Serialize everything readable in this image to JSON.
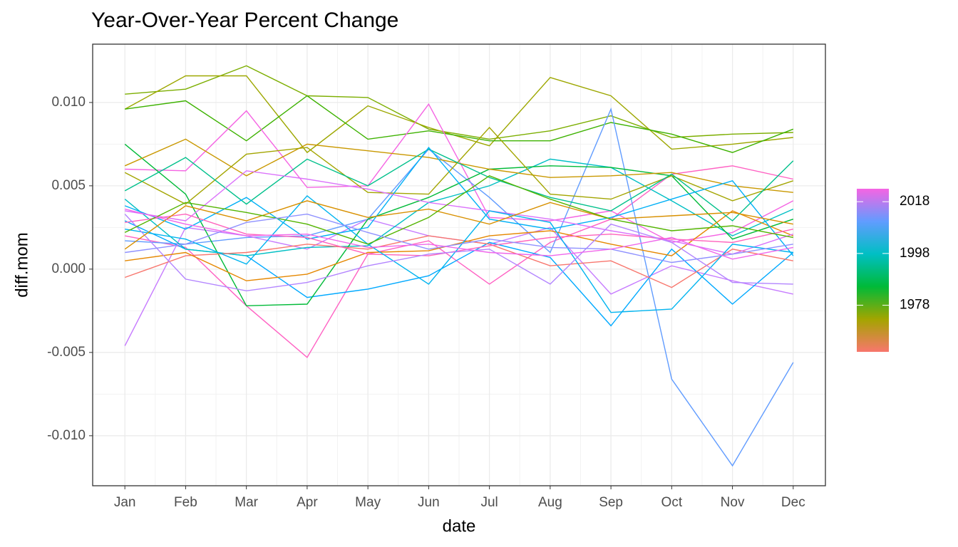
{
  "chart_data": {
    "type": "line",
    "title": "Year-Over-Year Percent Change",
    "x_label": "date",
    "y_label": "diff.mom",
    "categories": [
      "Jan",
      "Feb",
      "Mar",
      "Apr",
      "May",
      "Jun",
      "Jul",
      "Aug",
      "Sep",
      "Oct",
      "Nov",
      "Dec"
    ],
    "ylim": [
      -0.013,
      0.0135
    ],
    "yticks": [
      {
        "value": -0.01,
        "label": "-0.010"
      },
      -0.005,
      {
        "value": 0,
        "label": "0.000"
      },
      0.005,
      {
        "value": 0.01,
        "label": "0.010"
      }
    ],
    "grid": true,
    "colorbar": {
      "lim": [
        1960,
        2023
      ],
      "ticks": [
        1978,
        1998,
        2018
      ],
      "colors": [
        "#F8766D",
        "#A3A500",
        "#00BA38",
        "#00BFC4",
        "#619CFF",
        "#F564E3"
      ]
    },
    "series": [
      {
        "color": "#7CAE00",
        "values": [
          0.0105,
          0.0108,
          0.0122,
          0.0104,
          0.0103,
          0.0084,
          0.0078,
          0.0083,
          0.0092,
          0.0079,
          0.0081,
          0.0082
        ]
      },
      {
        "color": "#9DA700",
        "values": [
          0.0096,
          0.0116,
          0.0116,
          0.007,
          0.0098,
          0.0085,
          0.0074,
          0.0115,
          0.0104,
          0.0072,
          0.0075,
          0.0079
        ]
      },
      {
        "color": "#3DB200",
        "values": [
          0.0096,
          0.0101,
          0.0077,
          0.0104,
          0.0078,
          0.0083,
          0.0077,
          0.0077,
          0.0088,
          0.0081,
          0.007,
          0.0084
        ]
      },
      {
        "color": "#F564E3",
        "values": [
          0.006,
          0.0059,
          0.0095,
          0.0049,
          0.005,
          0.0099,
          0.0031,
          0.0029,
          0.0035,
          0.0016,
          0.0022,
          0.0041
        ]
      },
      {
        "color": "#FF61C3",
        "values": [
          0.002,
          0.0013,
          -0.0022,
          -0.0053,
          0.0009,
          0.0017,
          -0.0009,
          0.0016,
          0.003,
          0.0057,
          0.0062,
          0.0054
        ]
      },
      {
        "color": "#619CFF",
        "values": [
          0.0017,
          0.0015,
          0.0019,
          0.002,
          0.003,
          0.0072,
          0.0043,
          0.001,
          0.0096,
          -0.0066,
          -0.0118,
          -0.0056
        ]
      },
      {
        "color": "#C77CFF",
        "values": [
          -0.0046,
          0.0025,
          0.002,
          0.0012,
          0.003,
          0.002,
          0.0015,
          0.0025,
          -0.0015,
          0.0002,
          -0.0007,
          -0.0015
        ]
      },
      {
        "color": "#00A9FF",
        "values": [
          0.0029,
          0.0012,
          0.0008,
          -0.0017,
          -0.0012,
          -0.0004,
          0.0016,
          0.0007,
          -0.0034,
          0.0012,
          -0.0021,
          0.001
        ]
      },
      {
        "color": "#00BFC4",
        "values": [
          0.0042,
          0.0012,
          0.0008,
          0.0013,
          0.0014,
          0.004,
          0.005,
          0.0066,
          0.0061,
          0.0041,
          0.002,
          0.0036
        ]
      },
      {
        "color": "#00BA38",
        "values": [
          0.0075,
          0.0045,
          -0.0022,
          -0.0021,
          0.003,
          0.0043,
          0.006,
          0.0062,
          0.0061,
          0.0056,
          0.0018,
          0.003
        ]
      },
      {
        "color": "#F8766D",
        "values": [
          -0.0005,
          0.0008,
          0.001,
          0.0015,
          0.0012,
          0.002,
          0.0015,
          0.0002,
          0.0005,
          -0.0011,
          0.0012,
          0.0005
        ]
      },
      {
        "color": "#E58700",
        "values": [
          0.0005,
          0.001,
          -0.0007,
          -0.0003,
          0.001,
          0.0011,
          0.002,
          0.0023,
          0.0015,
          0.0008,
          0.0035,
          0.002
        ]
      },
      {
        "color": "#C99800",
        "values": [
          0.0062,
          0.0078,
          0.0056,
          0.0075,
          0.0071,
          0.0067,
          0.006,
          0.0055,
          0.0056,
          0.0058,
          0.005,
          0.0046
        ]
      },
      {
        "color": "#A3A500",
        "values": [
          0.0058,
          0.0039,
          0.0069,
          0.0073,
          0.0046,
          0.0045,
          0.0085,
          0.0045,
          0.0042,
          0.0056,
          0.0041,
          0.0053
        ]
      },
      {
        "color": "#00C08B",
        "values": [
          0.0047,
          0.0067,
          0.0039,
          0.0066,
          0.005,
          0.0072,
          0.0055,
          0.0043,
          0.0035,
          0.0057,
          0.0029,
          0.0065
        ]
      },
      {
        "color": "#00B0F6",
        "values": [
          0.0038,
          0.0024,
          0.0043,
          0.0018,
          0.0025,
          0.0073,
          0.003,
          0.0024,
          0.0031,
          0.0042,
          0.0053,
          0.0008
        ]
      },
      {
        "color": "#DB72FB",
        "values": [
          0.0035,
          0.0029,
          0.0059,
          0.0054,
          0.0048,
          0.004,
          0.0035,
          0.003,
          0.0023,
          0.0017,
          0.0009,
          0.0021
        ]
      },
      {
        "color": "#FF62BC",
        "values": [
          0.0028,
          0.0033,
          0.0021,
          0.0019,
          0.0009,
          0.0008,
          0.0014,
          0.0019,
          0.0021,
          0.0018,
          0.0016,
          0.0024
        ]
      },
      {
        "color": "#00B4EF",
        "values": [
          0.0024,
          0.0018,
          0.0003,
          0.0044,
          0.0015,
          -0.0009,
          0.0035,
          0.0028,
          -0.0026,
          -0.0024,
          0.0015,
          0.001
        ]
      },
      {
        "color": "#B385FF",
        "values": [
          0.0033,
          -0.0006,
          -0.0013,
          -0.0008,
          0.0002,
          0.0009,
          0.0012,
          -0.0009,
          0.0027,
          0.0016,
          -0.0008,
          -0.0009
        ]
      },
      {
        "color": "#D89000",
        "values": [
          0.0012,
          0.0038,
          0.0029,
          0.0041,
          0.0031,
          0.0036,
          0.0027,
          0.004,
          0.003,
          0.0032,
          0.0034,
          0.0027
        ]
      },
      {
        "color": "#53B400",
        "values": [
          0.0022,
          0.004,
          0.0034,
          0.0027,
          0.0015,
          0.0031,
          0.0056,
          0.0042,
          0.003,
          0.0023,
          0.0026,
          0.0019
        ]
      },
      {
        "color": "#8F91FF",
        "values": [
          0.001,
          0.0015,
          0.0028,
          0.0033,
          0.0022,
          0.0012,
          0.0018,
          0.0013,
          0.0012,
          0.0004,
          0.0009,
          0.0015
        ]
      },
      {
        "color": "#EF67EB",
        "values": [
          0.0036,
          0.0027,
          0.002,
          0.0021,
          0.0013,
          0.0015,
          0.001,
          0.0008,
          0.0012,
          0.0019,
          0.0006,
          0.0013
        ]
      }
    ]
  }
}
